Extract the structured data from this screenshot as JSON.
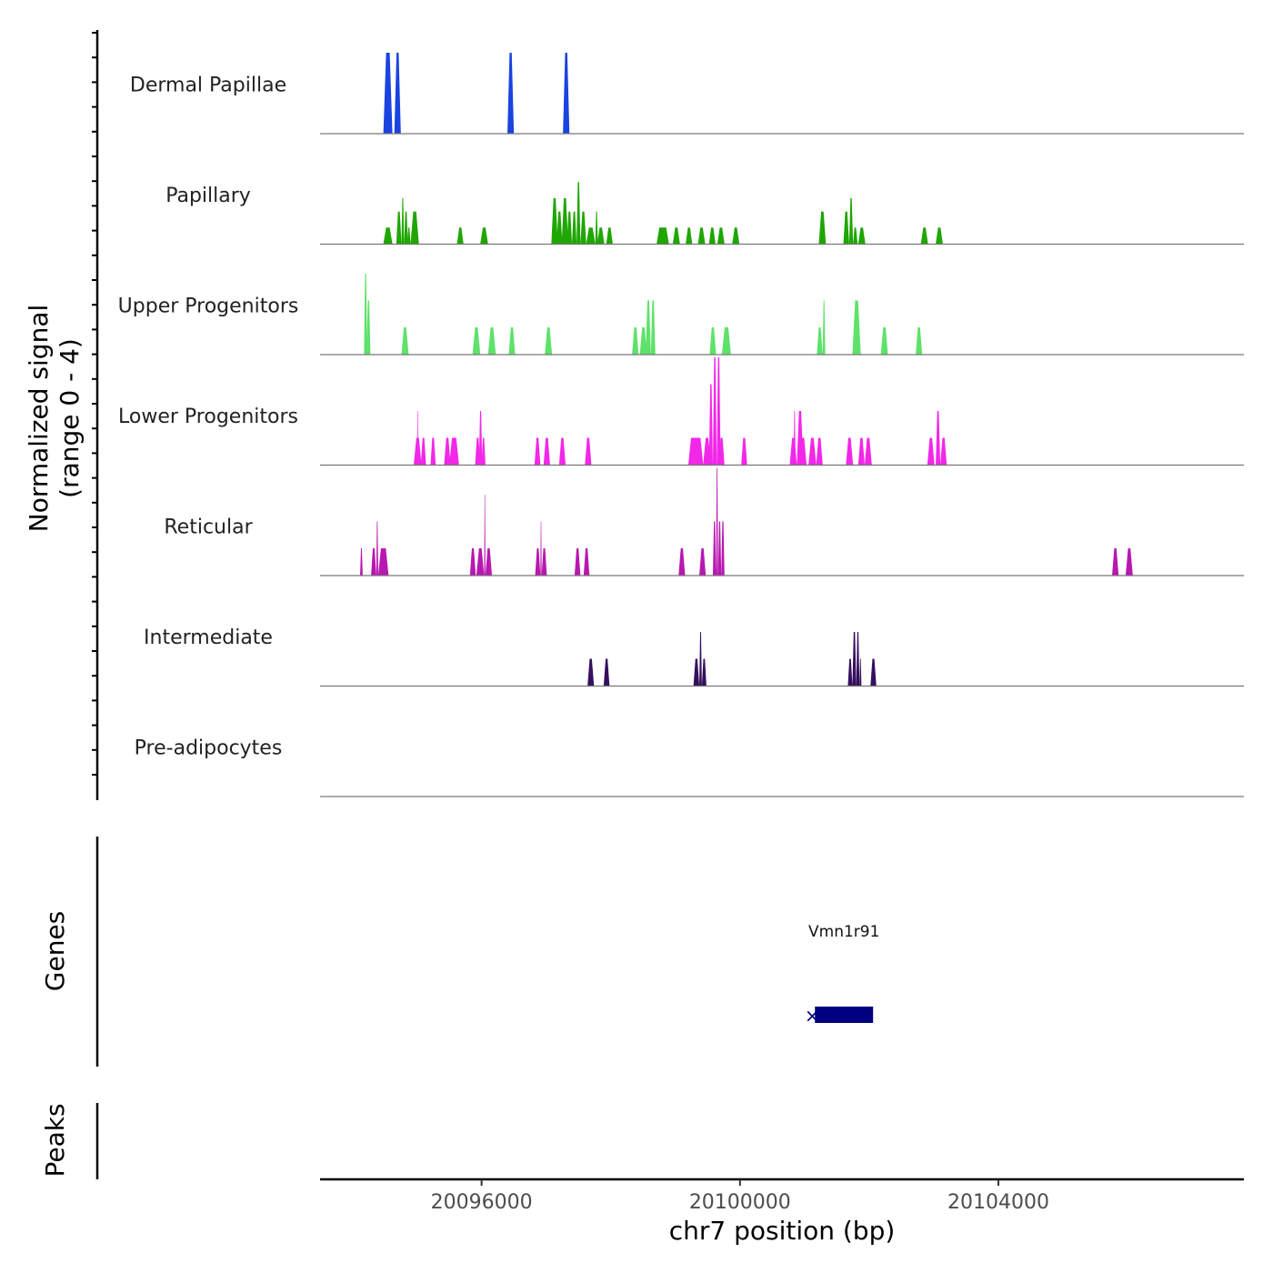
{
  "chart_data": {
    "type": "area",
    "title": "",
    "ylabel_line1": "Normalized signal",
    "ylabel_line2": "(range 0 - 4)",
    "xlabel": "chr7 position (bp)",
    "xlim": [
      20093500,
      20107800
    ],
    "ylim": [
      0,
      4
    ],
    "x_ticks": [
      20096000,
      20100000,
      20104000
    ],
    "x_tick_labels": [
      "20096000",
      "20100000",
      "20104000"
    ],
    "tracks": [
      {
        "name": "Dermal Papillae",
        "color": "#1a43e0",
        "peaks": [
          [
            20094480,
            20094620,
            3
          ],
          [
            20094650,
            20094750,
            3
          ],
          [
            20096400,
            20096500,
            3
          ],
          [
            20097260,
            20097360,
            3
          ]
        ]
      },
      {
        "name": "Papillary",
        "color": "#1fa600",
        "peaks": [
          [
            20094480,
            20094620,
            0.6
          ],
          [
            20094680,
            20094760,
            1.2
          ],
          [
            20094760,
            20094800,
            1.7
          ],
          [
            20094800,
            20094860,
            1.2
          ],
          [
            20094850,
            20094900,
            0.6
          ],
          [
            20094900,
            20095030,
            1.2
          ],
          [
            20095620,
            20095720,
            0.6
          ],
          [
            20095980,
            20096100,
            0.6
          ],
          [
            20097080,
            20097180,
            1.7
          ],
          [
            20097160,
            20097250,
            1.2
          ],
          [
            20097240,
            20097340,
            1.7
          ],
          [
            20097320,
            20097400,
            1.2
          ],
          [
            20097400,
            20097470,
            1.2
          ],
          [
            20097470,
            20097530,
            2.3
          ],
          [
            20097530,
            20097620,
            1.2
          ],
          [
            20097620,
            20097760,
            0.6
          ],
          [
            20097760,
            20097800,
            1.2
          ],
          [
            20097790,
            20097900,
            0.6
          ],
          [
            20097930,
            20098030,
            0.6
          ],
          [
            20098710,
            20098900,
            0.6
          ],
          [
            20098960,
            20099070,
            0.6
          ],
          [
            20099160,
            20099260,
            0.6
          ],
          [
            20099350,
            20099460,
            0.6
          ],
          [
            20099520,
            20099620,
            0.6
          ],
          [
            20099650,
            20099760,
            0.6
          ],
          [
            20099880,
            20099990,
            0.6
          ],
          [
            20101220,
            20101330,
            1.2
          ],
          [
            20101600,
            20101690,
            1.2
          ],
          [
            20101690,
            20101750,
            1.7
          ],
          [
            20101750,
            20101820,
            0.6
          ],
          [
            20101830,
            20101940,
            0.6
          ],
          [
            20102800,
            20102910,
            0.6
          ],
          [
            20103030,
            20103140,
            0.6
          ]
        ]
      },
      {
        "name": "Upper Progenitors",
        "color": "#5ee26a",
        "peaks": [
          [
            20094180,
            20094230,
            3
          ],
          [
            20094220,
            20094280,
            2
          ],
          [
            20094760,
            20094870,
            1
          ],
          [
            20095860,
            20095980,
            1
          ],
          [
            20096100,
            20096220,
            1
          ],
          [
            20096420,
            20096520,
            1
          ],
          [
            20096980,
            20097090,
            1
          ],
          [
            20098330,
            20098430,
            1
          ],
          [
            20098450,
            20098560,
            1
          ],
          [
            20098540,
            20098620,
            2
          ],
          [
            20098620,
            20098690,
            2
          ],
          [
            20099530,
            20099630,
            1
          ],
          [
            20099720,
            20099860,
            1
          ],
          [
            20101190,
            20101280,
            1
          ],
          [
            20101280,
            20101320,
            2
          ],
          [
            20101740,
            20101870,
            2
          ],
          [
            20102180,
            20102290,
            1
          ],
          [
            20102720,
            20102820,
            1
          ]
        ]
      },
      {
        "name": "Lower Progenitors",
        "color": "#f227e8",
        "peaks": [
          [
            20094950,
            20095070,
            1
          ],
          [
            20095000,
            20095020,
            2
          ],
          [
            20095060,
            20095140,
            1
          ],
          [
            20095210,
            20095290,
            1
          ],
          [
            20095420,
            20095520,
            1
          ],
          [
            20095500,
            20095650,
            1
          ],
          [
            20095900,
            20095980,
            1
          ],
          [
            20095960,
            20096010,
            2
          ],
          [
            20096000,
            20096060,
            1
          ],
          [
            20096820,
            20096910,
            1
          ],
          [
            20096960,
            20097060,
            1
          ],
          [
            20097200,
            20097300,
            1
          ],
          [
            20097600,
            20097700,
            1
          ],
          [
            20099200,
            20099430,
            1
          ],
          [
            20099430,
            20099550,
            1
          ],
          [
            20099520,
            20099580,
            3
          ],
          [
            20099580,
            20099640,
            4
          ],
          [
            20099640,
            20099700,
            4
          ],
          [
            20099670,
            20099760,
            1
          ],
          [
            20100020,
            20100110,
            1
          ],
          [
            20100770,
            20100880,
            1
          ],
          [
            20100830,
            20100860,
            2
          ],
          [
            20100880,
            20100980,
            2
          ],
          [
            20100920,
            20101030,
            1
          ],
          [
            20101060,
            20101180,
            1
          ],
          [
            20101180,
            20101280,
            1
          ],
          [
            20101640,
            20101750,
            1
          ],
          [
            20101830,
            20101930,
            1
          ],
          [
            20101930,
            20102040,
            1
          ],
          [
            20102900,
            20103010,
            1
          ],
          [
            20103030,
            20103100,
            2
          ],
          [
            20103100,
            20103200,
            1
          ]
        ]
      },
      {
        "name": "Reticular",
        "color": "#b817b0",
        "peaks": [
          [
            20094120,
            20094160,
            1
          ],
          [
            20094290,
            20094370,
            1
          ],
          [
            20094370,
            20094400,
            2
          ],
          [
            20094400,
            20094560,
            1
          ],
          [
            20095820,
            20095910,
            1
          ],
          [
            20095920,
            20096040,
            1
          ],
          [
            20096040,
            20096060,
            3
          ],
          [
            20096060,
            20096160,
            1
          ],
          [
            20096830,
            20096910,
            1
          ],
          [
            20096910,
            20096930,
            2
          ],
          [
            20096930,
            20097010,
            1
          ],
          [
            20097440,
            20097530,
            1
          ],
          [
            20097580,
            20097670,
            1
          ],
          [
            20099050,
            20099150,
            1
          ],
          [
            20099370,
            20099470,
            1
          ],
          [
            20099580,
            20099630,
            2
          ],
          [
            20099630,
            20099660,
            4
          ],
          [
            20099660,
            20099710,
            2
          ],
          [
            20099710,
            20099760,
            2
          ],
          [
            20105760,
            20105860,
            1
          ],
          [
            20105970,
            20106080,
            1
          ]
        ]
      },
      {
        "name": "Intermediate",
        "color": "#35105e",
        "peaks": [
          [
            20097640,
            20097740,
            1
          ],
          [
            20097890,
            20097980,
            1
          ],
          [
            20099280,
            20099370,
            1
          ],
          [
            20099370,
            20099410,
            2
          ],
          [
            20099410,
            20099480,
            1
          ],
          [
            20101670,
            20101740,
            1
          ],
          [
            20101740,
            20101800,
            2
          ],
          [
            20101800,
            20101850,
            2
          ],
          [
            20101850,
            20101880,
            1
          ],
          [
            20102020,
            20102110,
            1
          ]
        ]
      },
      {
        "name": "Pre-adipocytes",
        "color": "#000000",
        "peaks": []
      }
    ],
    "genes_label": "Genes",
    "peaks_label": "Peaks",
    "genes": [
      {
        "name": "Vmn1r91",
        "start": 20101160,
        "end": 20102060,
        "strand_marker": "×",
        "color": "#000080"
      }
    ]
  }
}
